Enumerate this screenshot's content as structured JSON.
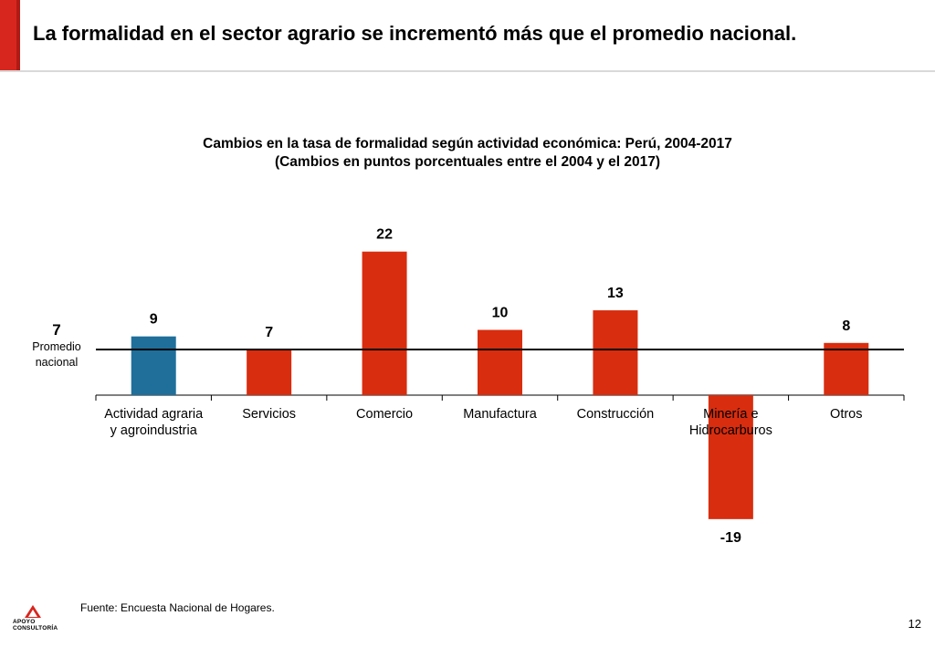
{
  "header": {
    "title": "La formalidad en el sector agrario se incrementó más que el promedio nacional.",
    "accent_color": "#d7261e"
  },
  "chart_data": {
    "type": "bar",
    "title": "Cambios en la tasa de formalidad según actividad económica: Perú, 2004-2017",
    "subtitle": "(Cambios en puntos porcentuales entre el 2004 y el 2017)",
    "categories": [
      "Actividad agraria y agroindustria",
      "Servicios",
      "Comercio",
      "Manufactura",
      "Construcción",
      "Minería e Hidrocarburos",
      "Otros"
    ],
    "category_lines": [
      [
        "Actividad agraria",
        "y agroindustria"
      ],
      [
        "Servicios"
      ],
      [
        "Comercio"
      ],
      [
        "Manufactura"
      ],
      [
        "Construcción"
      ],
      [
        "Minería e",
        "Hidrocarburos"
      ],
      [
        "Otros"
      ]
    ],
    "values": [
      9,
      7,
      22,
      10,
      13,
      -19,
      8
    ],
    "value_labels": [
      "9",
      "7",
      "22",
      "10",
      "13",
      "-19",
      "8"
    ],
    "highlight_index": 0,
    "colors": {
      "highlight": "#1f6f9a",
      "default": "#d82d0f",
      "reference_line": "#000000"
    },
    "reference_line": {
      "value": 7,
      "value_label": "7",
      "label": [
        "Promedio",
        "nacional"
      ]
    },
    "xlabel": "",
    "ylabel": "",
    "ylim": [
      -19,
      22
    ],
    "grid": false,
    "legend": "none"
  },
  "footer": {
    "source": "Fuente: Encuesta Nacional de Hogares.",
    "page_number": "12",
    "logo_lines": [
      "APOYO",
      "CONSULTORÍA"
    ]
  }
}
